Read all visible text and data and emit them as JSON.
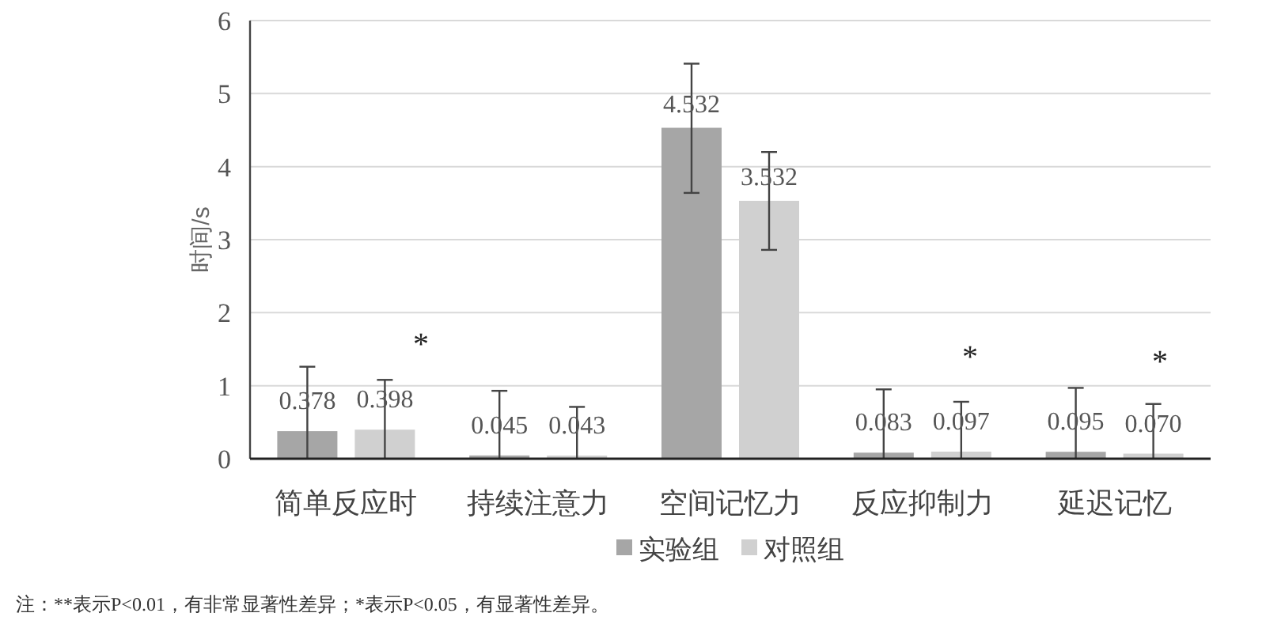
{
  "chart_data": {
    "type": "bar",
    "ylabel": "时间/s",
    "categories": [
      "简单反应时",
      "持续注意力",
      "空间记忆力",
      "反应抑制力",
      "延迟记忆"
    ],
    "series": [
      {
        "name": "实验组",
        "color": "#a6a6a6",
        "values": [
          0.378,
          0.045,
          4.532,
          0.083,
          0.095
        ],
        "value_labels": [
          "0.378",
          "0.045",
          "4.532",
          "0.083",
          "0.095"
        ],
        "errors": [
          [
            0,
            1.26
          ],
          [
            0,
            0.93
          ],
          [
            3.64,
            5.41
          ],
          [
            0,
            0.95
          ],
          [
            0,
            0.97
          ]
        ]
      },
      {
        "name": "对照组",
        "color": "#d0d0d0",
        "values": [
          0.398,
          0.043,
          3.532,
          0.097,
          0.07
        ],
        "value_labels": [
          "0.398",
          "0.043",
          "3.532",
          "0.097",
          "0.070"
        ],
        "errors": [
          [
            0,
            1.08
          ],
          [
            0,
            0.71
          ],
          [
            2.86,
            4.2
          ],
          [
            0,
            0.78
          ],
          [
            0,
            0.75
          ]
        ]
      }
    ],
    "ylim": [
      0,
      6
    ],
    "yticks": [
      0,
      1,
      2,
      3,
      4,
      5,
      6
    ],
    "grid": "y",
    "legend": "bottom",
    "annotations": [
      "*",
      "*",
      "*",
      "注：**表示P<0.01，有非常显著性差异；*表示P<0.05，有显著性差异。"
    ]
  }
}
